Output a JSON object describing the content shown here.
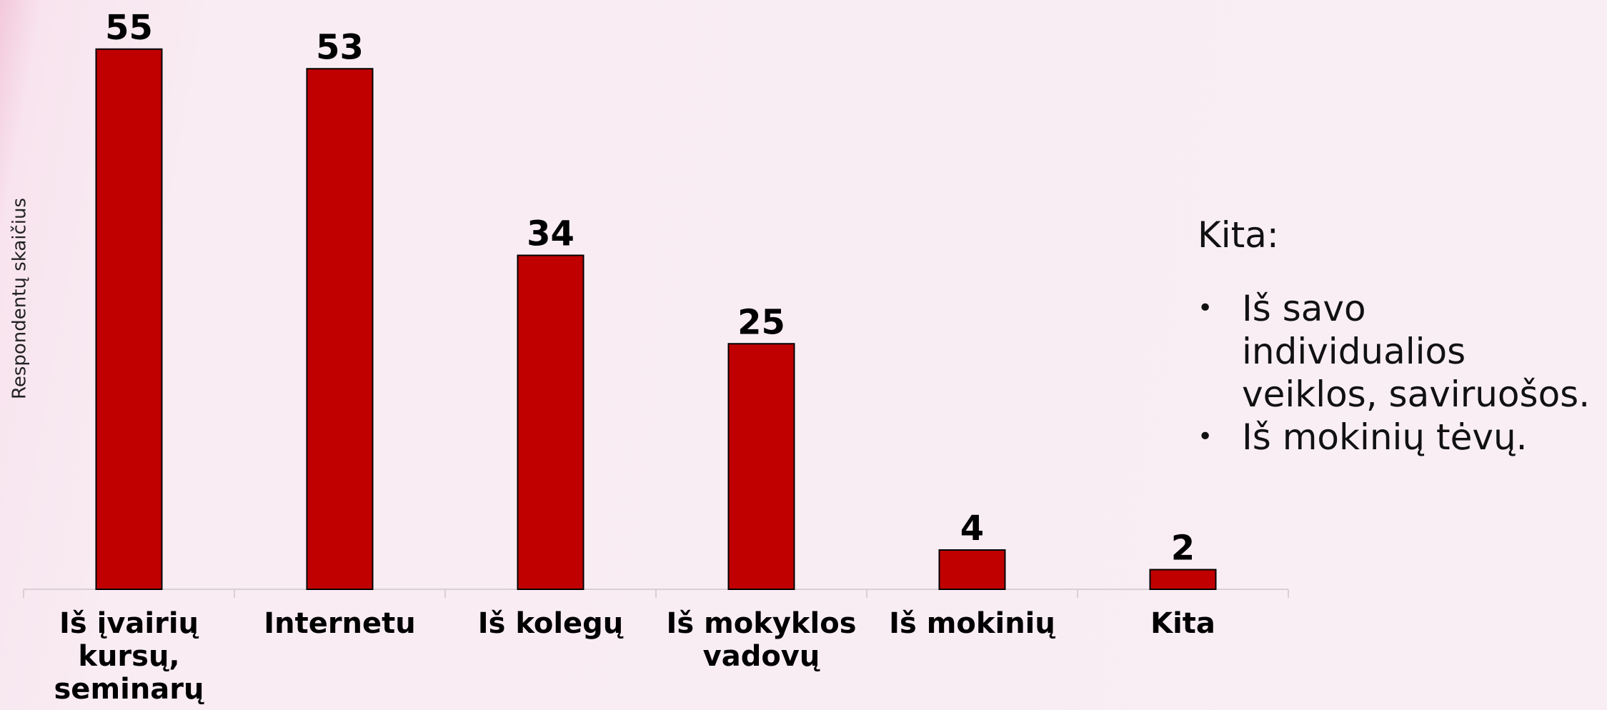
{
  "chart_data": {
    "type": "bar",
    "y_label": "Respondentų skaičius",
    "categories": [
      "Iš įvairių kursų, seminarų",
      "Internetu",
      "Iš kolegų",
      "Iš mokyklos vadovų",
      "Iš mokinių",
      "Kita"
    ],
    "values": [
      55,
      53,
      34,
      25,
      4,
      2
    ],
    "color": "#c00000",
    "ylim": [
      0,
      60
    ]
  },
  "notes": {
    "heading": "Kita:",
    "items": [
      "Iš savo individualios veiklos, saviruošos.",
      "Iš mokinių tėvų."
    ]
  }
}
